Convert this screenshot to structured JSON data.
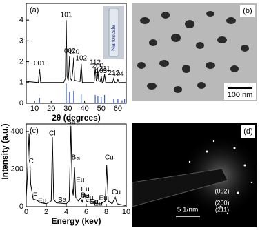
{
  "chart_data": [
    {
      "type": "line",
      "panel": "(a)",
      "xlabel": "2θ (degrees)",
      "inset": "Nanoscale",
      "xlim": [
        5,
        65
      ],
      "xticks": [
        10,
        20,
        30,
        40,
        50,
        60
      ],
      "ylim": [
        0,
        4.8
      ],
      "yticks": [
        0,
        1,
        2,
        3,
        4
      ],
      "series": [
        {
          "color": "#000000",
          "x": [
            5,
            12.3,
            13,
            13.7,
            27.5,
            28.5,
            29,
            29.5,
            30.2,
            30.6,
            31,
            31.5,
            32.3,
            33,
            33.5,
            34,
            37.3,
            38,
            38.7,
            45.7,
            46.4,
            47,
            47.6,
            48,
            48.5,
            49.4,
            50,
            50.6,
            51.4,
            52,
            52.7,
            56.8,
            57.5,
            58.2,
            59.4,
            60,
            60.6,
            65
          ],
          "values": [
            1.05,
            1.0,
            1.65,
            1.0,
            1.0,
            1.2,
            4.0,
            1.3,
            1.1,
            1.6,
            2.25,
            1.2,
            1.1,
            1.6,
            2.2,
            1.1,
            1.05,
            1.9,
            1.0,
            1.0,
            1.7,
            1.1,
            1.2,
            1.55,
            1.1,
            1.05,
            1.3,
            1.0,
            1.05,
            1.4,
            1.0,
            1.0,
            1.2,
            1.0,
            1.0,
            1.15,
            1.0,
            1.0
          ]
        }
      ],
      "reference": {
        "color": "#3a5fcd",
        "x": [
          13,
          29,
          31,
          33.5,
          38,
          46.4,
          48,
          50,
          52,
          57.5,
          60,
          62.5,
          64
        ],
        "values": [
          0.25,
          0.95,
          0.55,
          0.6,
          0.45,
          0.4,
          0.35,
          0.3,
          0.4,
          0.2,
          0.2,
          0.15,
          0.2
        ]
      },
      "annotations": [
        {
          "text": "001",
          "x": 13,
          "y": 1.9
        },
        {
          "text": "101",
          "x": 29,
          "y": 4.25
        },
        {
          "text": "002",
          "x": 31.2,
          "y": 2.5
        },
        {
          "text": "110",
          "x": 33.7,
          "y": 2.45
        },
        {
          "text": "102",
          "x": 38,
          "y": 2.15
        },
        {
          "text": "112",
          "x": 46.4,
          "y": 1.95
        },
        {
          "text": "200",
          "x": 48,
          "y": 1.8
        },
        {
          "text": "103",
          "x": 50,
          "y": 1.55
        },
        {
          "text": "211",
          "x": 52,
          "y": 1.65
        },
        {
          "text": "212",
          "x": 57.5,
          "y": 1.45
        },
        {
          "text": "104",
          "x": 60.2,
          "y": 1.4
        }
      ]
    },
    {
      "type": "line",
      "panel": "(c)",
      "xlabel": "Energy (kev)",
      "ylabel": "Intensity (a.u.)",
      "xlim": [
        0,
        10
      ],
      "xticks": [
        0,
        2,
        4,
        6,
        8,
        10
      ],
      "ylim": [
        0,
        440
      ],
      "yticks": [
        0,
        200,
        400
      ],
      "series": [
        {
          "color": "#000000",
          "x": [
            0,
            0.1,
            0.28,
            0.45,
            0.7,
            1.0,
            1.5,
            2.0,
            2.5,
            2.62,
            2.75,
            3.0,
            4.0,
            4.3,
            4.47,
            4.6,
            4.7,
            4.83,
            4.95,
            5.2,
            5.45,
            5.6,
            5.85,
            6.0,
            6.2,
            6.5,
            7.0,
            7.5,
            7.9,
            8.05,
            8.2,
            8.6,
            8.9,
            9.1,
            9.5,
            10
          ],
          "values": [
            50,
            150,
            390,
            120,
            40,
            35,
            20,
            15,
            30,
            370,
            40,
            20,
            15,
            30,
            430,
            100,
            60,
            210,
            50,
            30,
            45,
            25,
            70,
            30,
            25,
            25,
            15,
            15,
            30,
            220,
            30,
            15,
            50,
            15,
            10,
            5
          ]
        }
      ],
      "annotations": [
        {
          "text": "C",
          "x": 0.5,
          "y": 240
        },
        {
          "text": "F",
          "x": 0.9,
          "y": 60
        },
        {
          "text": "Eu",
          "x": 1.6,
          "y": 30
        },
        {
          "text": "Cl",
          "x": 2.6,
          "y": 390
        },
        {
          "text": "Ba",
          "x": 3.6,
          "y": 35
        },
        {
          "text": "Ba",
          "x": 4.5,
          "y": 450
        },
        {
          "text": "Ba",
          "x": 4.95,
          "y": 260
        },
        {
          "text": "Eu",
          "x": 5.4,
          "y": 140
        },
        {
          "text": "Eu",
          "x": 5.9,
          "y": 90
        },
        {
          "text": "Ba",
          "x": 5.9,
          "y": 60
        },
        {
          "text": "Eu",
          "x": 6.3,
          "y": 45
        },
        {
          "text": "Eu",
          "x": 6.8,
          "y": 25
        },
        {
          "text": "Eu",
          "x": 7.2,
          "y": 15
        },
        {
          "text": "Eu",
          "x": 7.7,
          "y": 45
        },
        {
          "text": "Cu",
          "x": 8.3,
          "y": 260
        },
        {
          "text": "Cu",
          "x": 9.0,
          "y": 75
        }
      ]
    }
  ],
  "images": [
    {
      "panel": "(b)",
      "scale": "100 nm"
    },
    {
      "panel": "(d)",
      "scale": "5 1/nm",
      "labels": [
        "(002)",
        "(200)",
        "(211)"
      ]
    }
  ]
}
